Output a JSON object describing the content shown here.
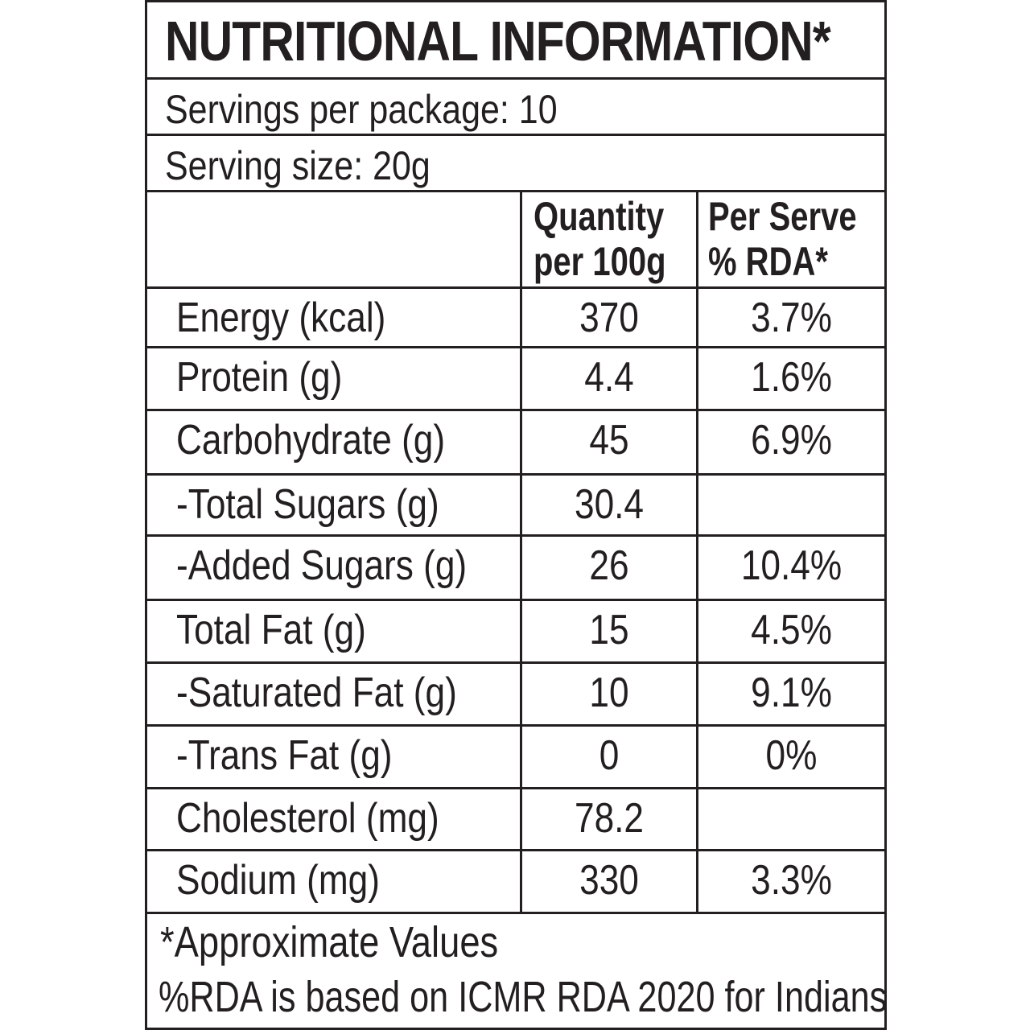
{
  "title": "NUTRITIONAL INFORMATION*",
  "servings_per_package": "Servings per package: 10",
  "serving_size": "Serving size: 20g",
  "header": {
    "quantity_line1": "Quantity",
    "quantity_line2": "per 100g",
    "rda_line1": "Per Serve",
    "rda_line2": "% RDA*"
  },
  "rows": [
    {
      "name": "Energy (kcal)",
      "qty": "370",
      "rda": "3.7%"
    },
    {
      "name": "Protein (g)",
      "qty": "4.4",
      "rda": "1.6%"
    },
    {
      "name": "Carbohydrate (g)",
      "qty": "45",
      "rda": "6.9%"
    },
    {
      "name": "-Total Sugars (g)",
      "qty": "30.4",
      "rda": ""
    },
    {
      "name": "-Added Sugars (g)",
      "qty": "26",
      "rda": "10.4%"
    },
    {
      "name": "Total Fat (g)",
      "qty": "15",
      "rda": "4.5%"
    },
    {
      "name": "-Saturated Fat (g)",
      "qty": "10",
      "rda": "9.1%"
    },
    {
      "name": "-Trans Fat (g)",
      "qty": "0",
      "rda": "0%"
    },
    {
      "name": "Cholesterol (mg)",
      "qty": "78.2",
      "rda": ""
    },
    {
      "name": "Sodium (mg)",
      "qty": "330",
      "rda": "3.3%"
    }
  ],
  "footnote_1": "*Approximate Values",
  "footnote_2": "%RDA is based on ICMR RDA 2020 for Indians",
  "colors": {
    "ink": "#231f20",
    "background": "#ffffff"
  }
}
